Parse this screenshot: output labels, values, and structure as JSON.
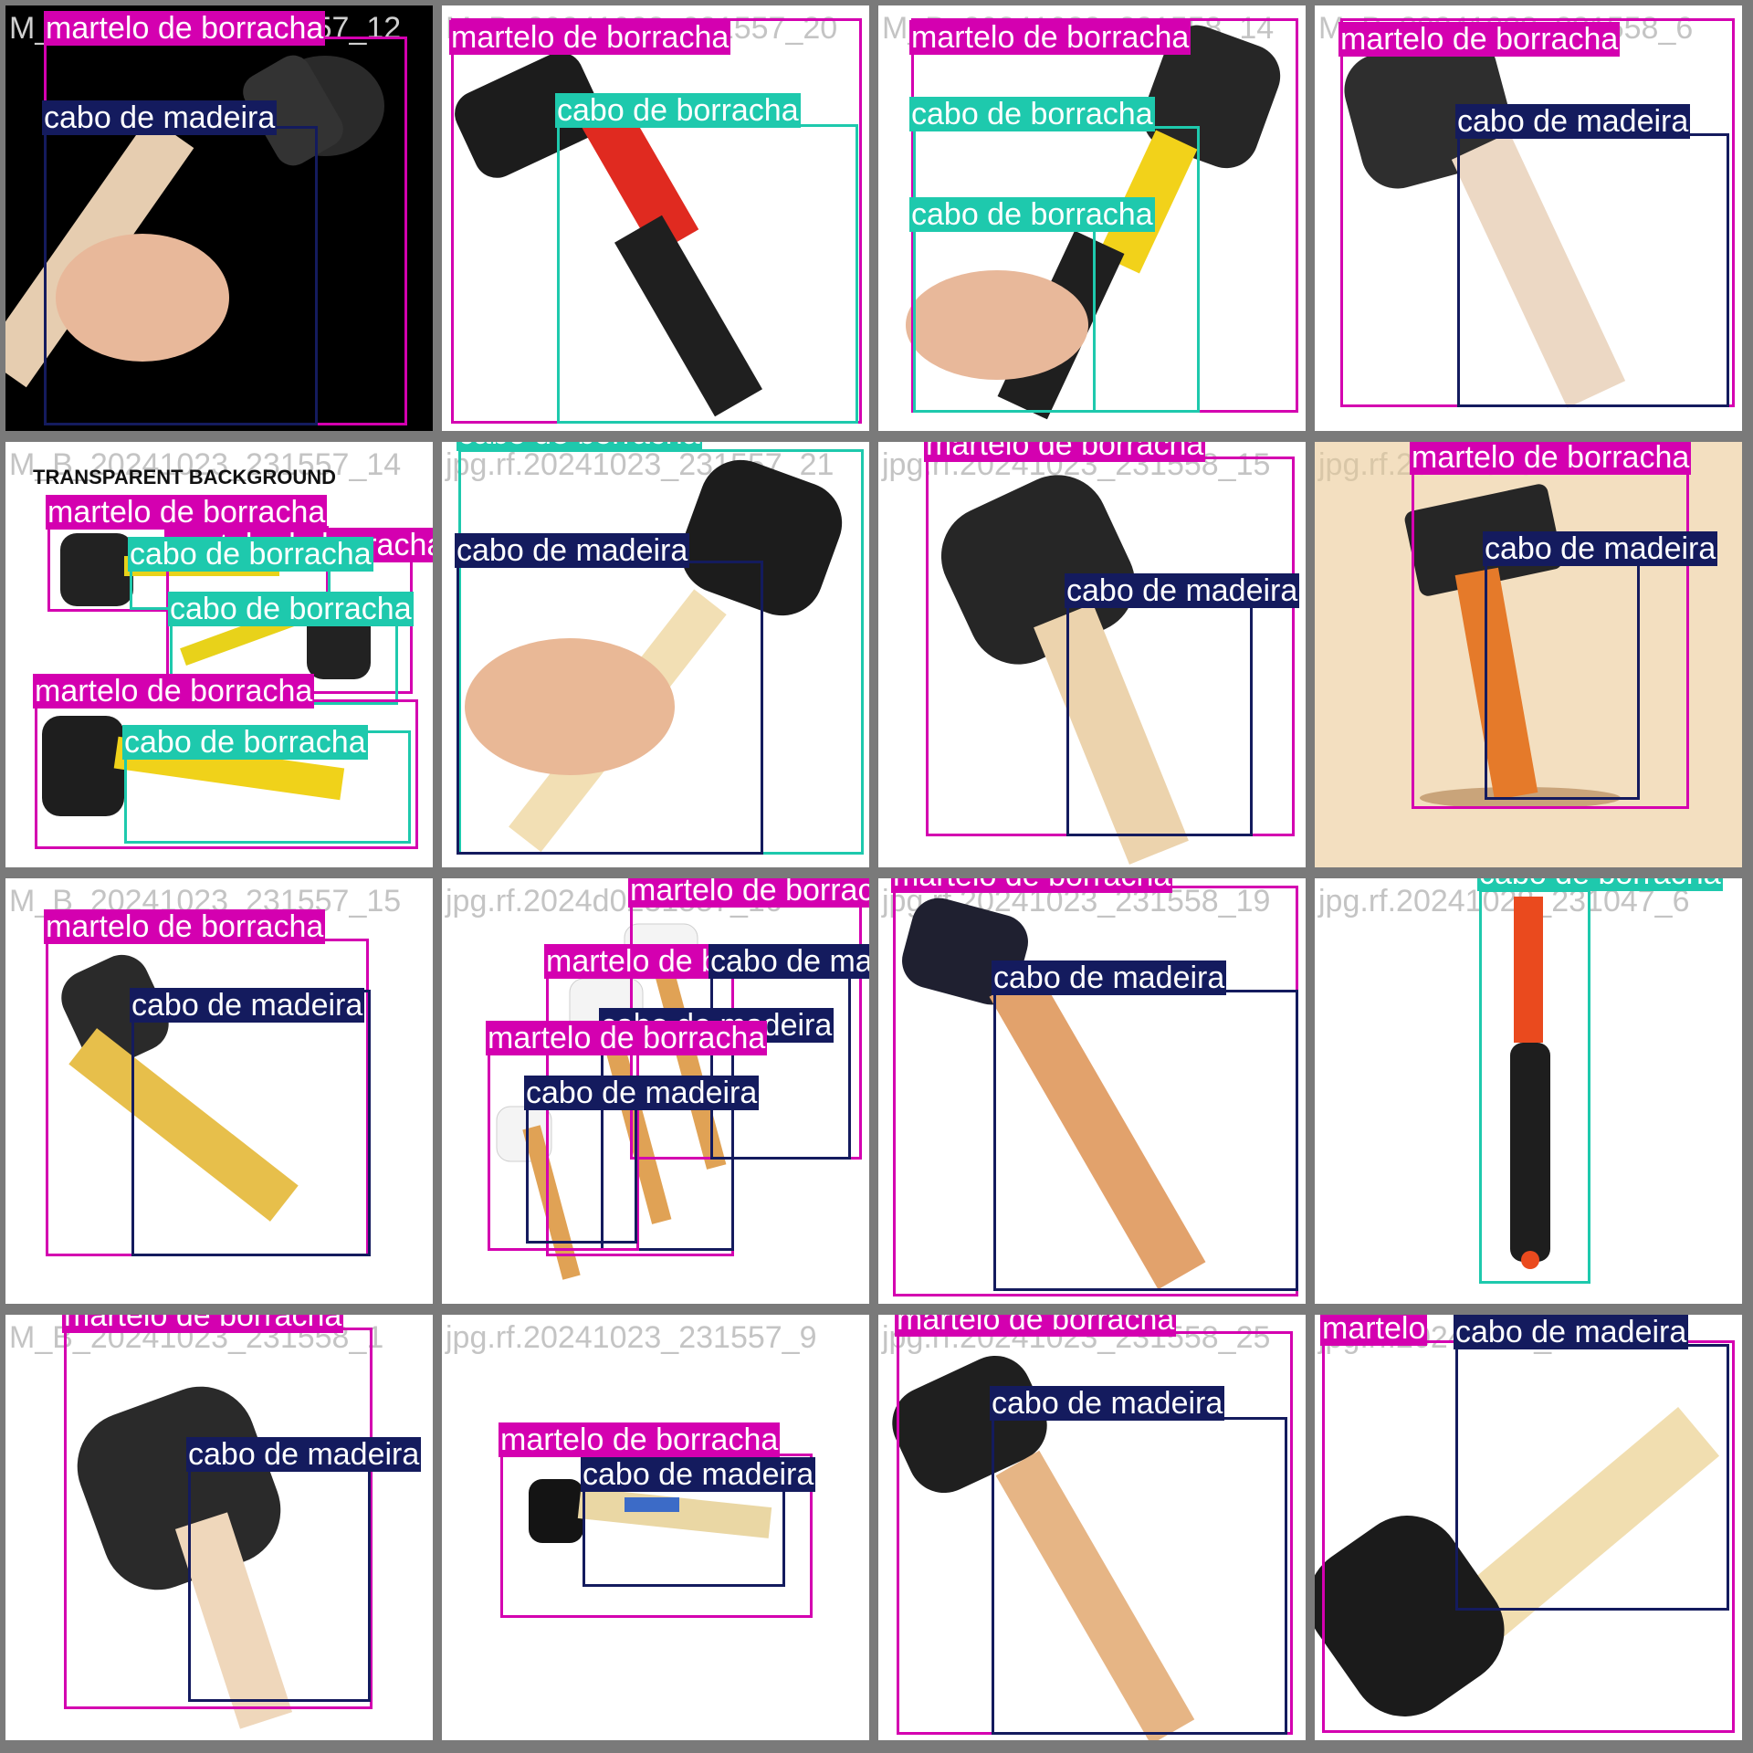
{
  "class_labels": {
    "mallet": "martelo de borracha",
    "wood": "cabo de madeira",
    "rubber": "cabo de borracha"
  },
  "colors": {
    "mallet": "#d400b0",
    "wood": "#141b5e",
    "rubber": "#1ec9ad",
    "grid": "#7a7a7a"
  },
  "tiles": [
    {
      "fname": "M_B_20241023_231557_12",
      "labels": [
        "martelo de borracha",
        "cabo de madeira"
      ]
    },
    {
      "fname": "M_B_20241023_231557_20",
      "labels": [
        "martelo de borracha",
        "cabo de borracha"
      ]
    },
    {
      "fname": "M_B_20241023_231558_14",
      "labels": [
        "martelo de borracha",
        "cabo de borracha",
        "cabo de borracha"
      ]
    },
    {
      "fname": "M_B_20241023_231558_6",
      "labels": [
        "martelo de borracha",
        "cabo de madeira"
      ]
    },
    {
      "fname": "M_B_20241023_231557_14",
      "image_text": "TRANSPARENT BACKGROUND",
      "labels": [
        "martelo de borracha",
        "martelo de borracha",
        "cabo de borracha",
        "cabo de borracha",
        "martelo de borracha",
        "cabo de borracha"
      ]
    },
    {
      "fname": "jpg.rf.20241023_231557_21",
      "labels": [
        "cabo de borracha",
        "cabo de madeira"
      ]
    },
    {
      "fname": "jpg.rf.20241023_231558_15",
      "labels": [
        "martelo de borracha",
        "cabo de madeira"
      ]
    },
    {
      "fname": "jpg.rf.20241023",
      "labels": [
        "martelo de borracha",
        "cabo de madeira"
      ]
    },
    {
      "fname": "M_B_20241023_231557_15",
      "labels": [
        "martelo de borracha",
        "cabo de madeira"
      ]
    },
    {
      "fname": "jpg.rf.2024d0231557_16",
      "labels": [
        "martelo de borracha",
        "martelo de borracha",
        "cabo de madeira",
        "cabo de madeira",
        "martelo de borracha",
        "cabo de madeira"
      ]
    },
    {
      "fname": "jpg.rf.20241023_231558_19",
      "labels": [
        "martelo de borracha",
        "cabo de madeira"
      ]
    },
    {
      "fname": "jpg.rf.20241028_231047_6",
      "labels": [
        "cabo de borracha"
      ]
    },
    {
      "fname": "M_B_20241023_231558_1",
      "labels": [
        "martelo de borracha",
        "cabo de madeira"
      ]
    },
    {
      "fname": "jpg.rf.20241023_231557_9",
      "labels": [
        "martelo de borracha",
        "cabo de madeira"
      ]
    },
    {
      "fname": "jpg.rf.20241023_231558_25",
      "labels": [
        "martelo de borracha",
        "cabo de madeira"
      ]
    },
    {
      "fname": "jpg.rf.20241023_231558",
      "labels": [
        "martelo",
        "cabo de madeira"
      ]
    }
  ]
}
